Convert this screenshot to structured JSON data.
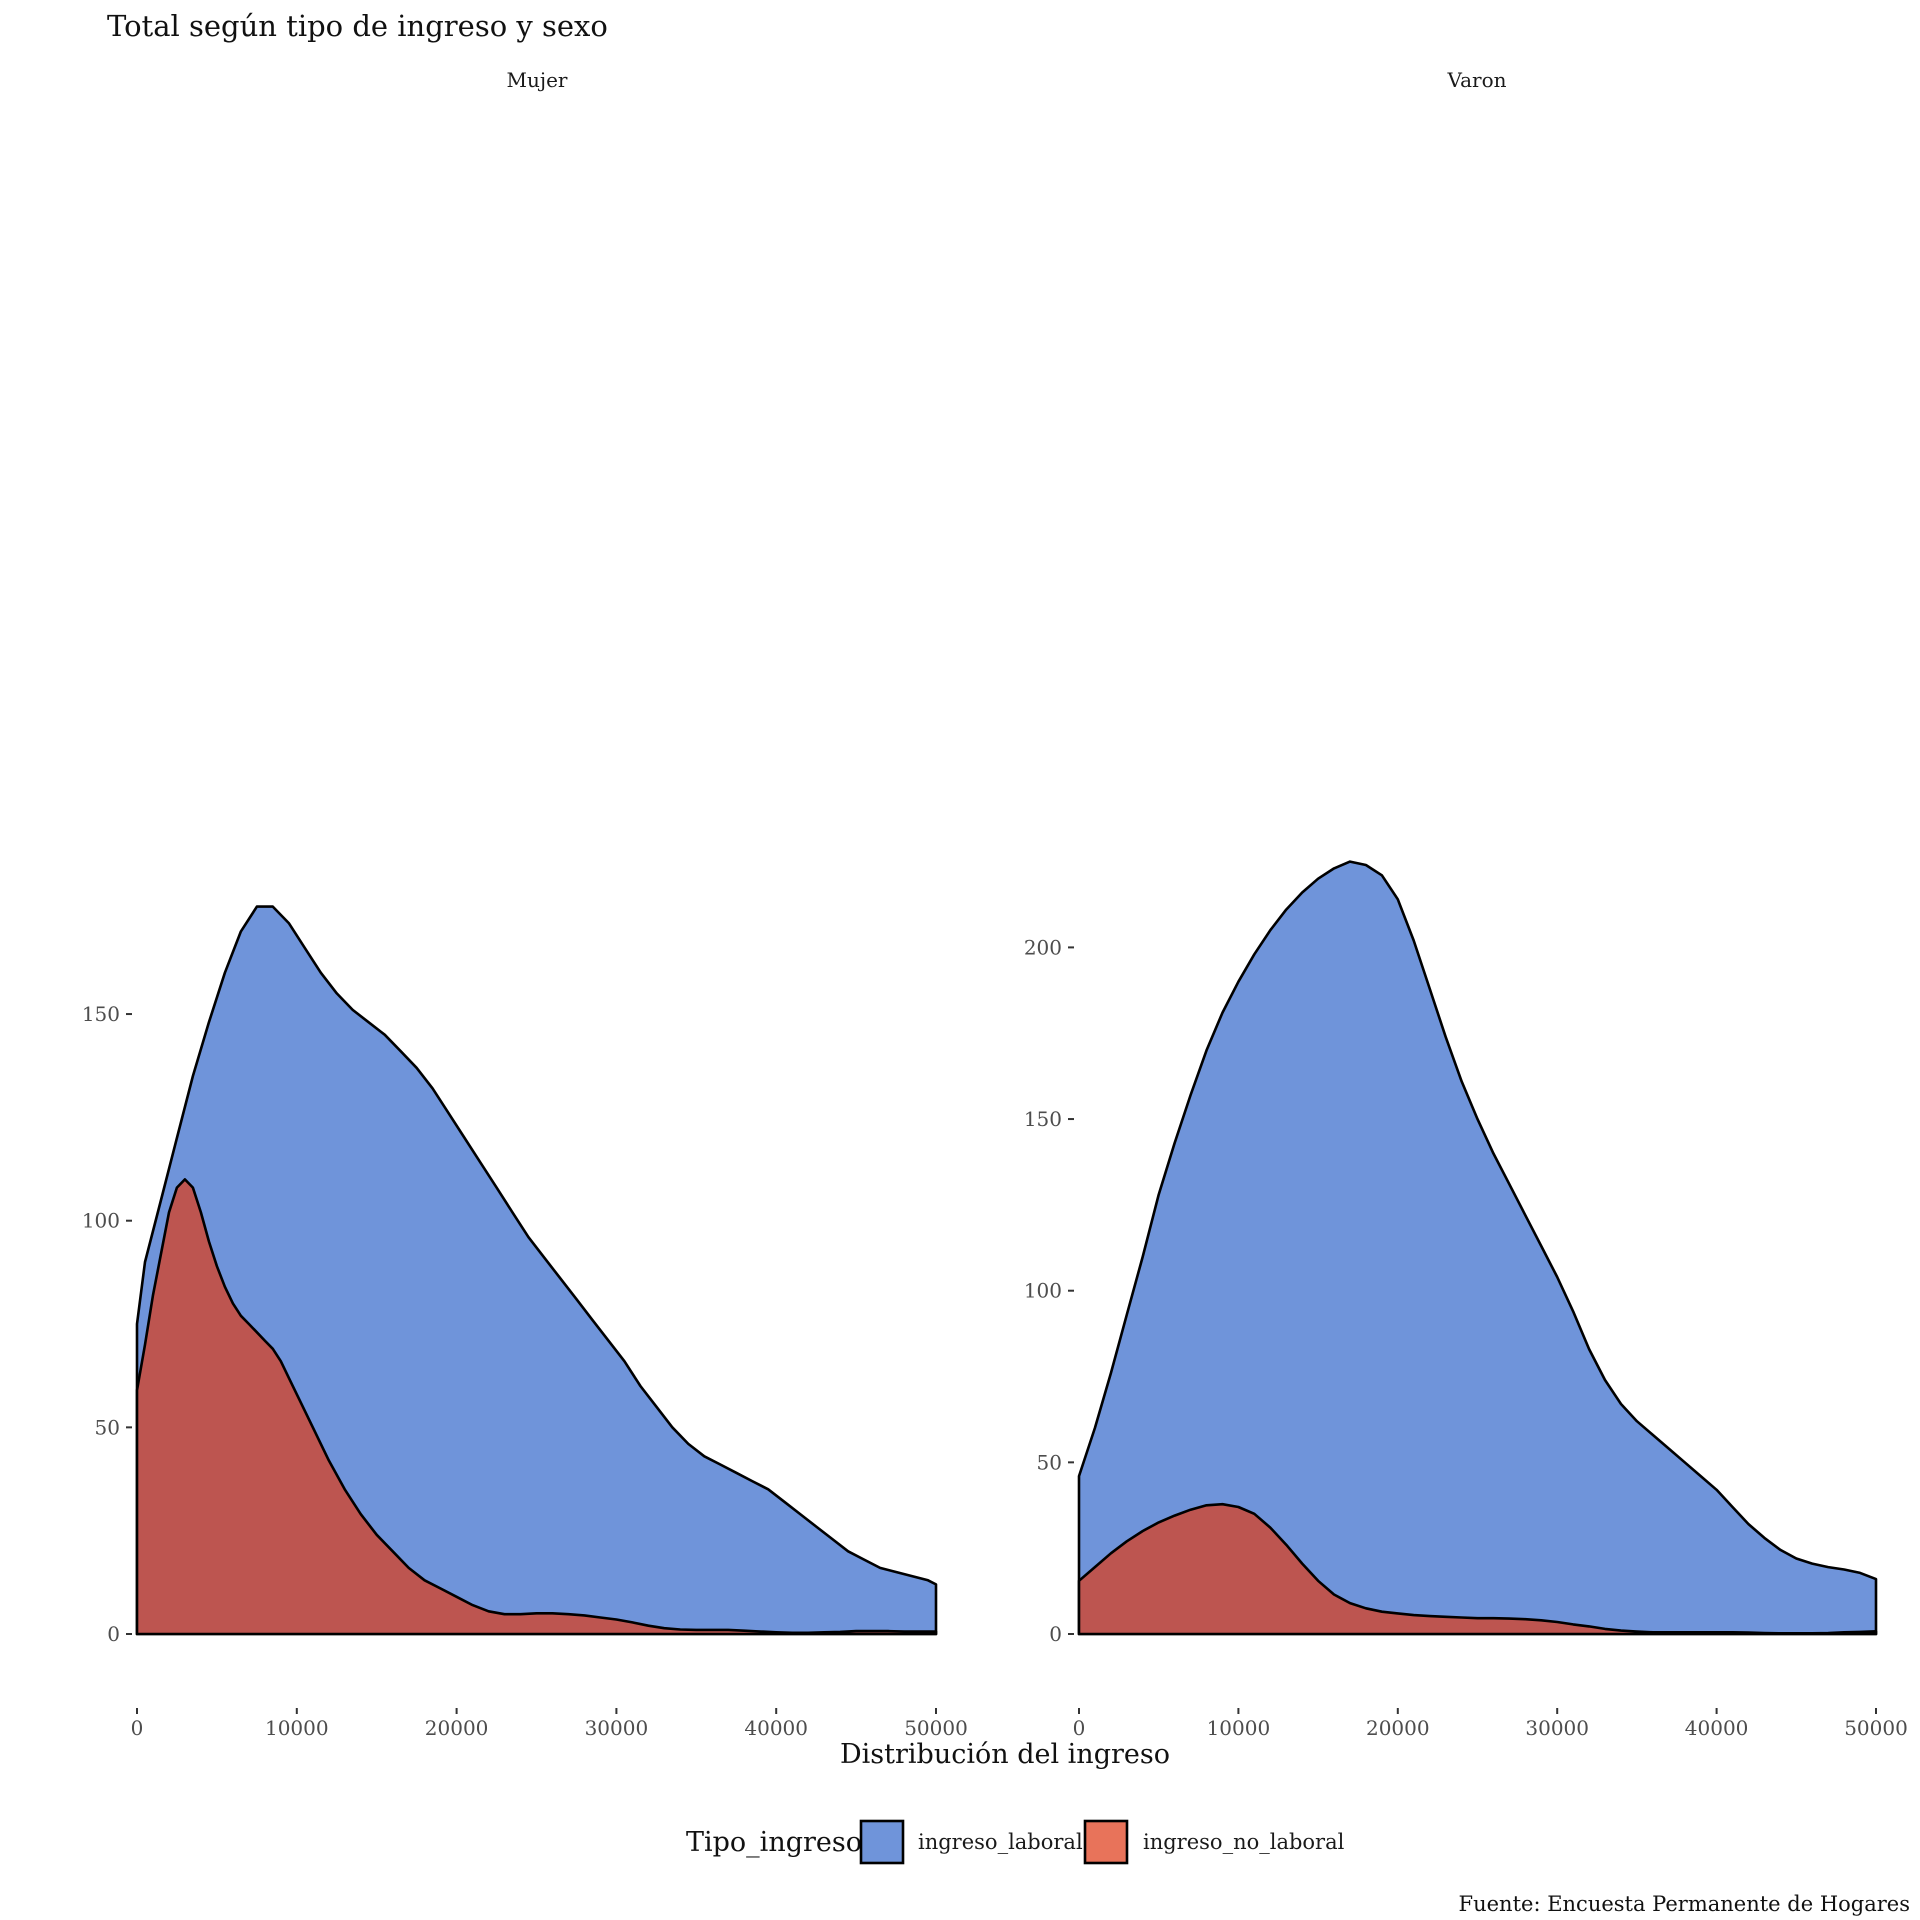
{
  "chart_data": {
    "type": "area",
    "title": "Total según tipo de ingreso y sexo",
    "xlabel": "Distribución del ingreso",
    "caption": "Fuente: Encuesta Permanente de Hogares",
    "legend": {
      "title": "Tipo_ingreso",
      "position": "bottom",
      "entries": [
        {
          "label": "ingreso_laboral",
          "color": "#6F94DA"
        },
        {
          "label": "ingreso_no_laboral",
          "color": "#E8735A"
        }
      ]
    },
    "stacked": true,
    "grid": false,
    "x_ticks": [
      "0",
      "10000",
      "20000",
      "30000",
      "40000",
      "50000"
    ],
    "panels": [
      {
        "strip": "Mujer",
        "xlim": [
          0,
          50000
        ],
        "ylim": [
          0,
          180
        ],
        "y_ticks": [
          0,
          50,
          100,
          150
        ],
        "y_tick_labels": [
          "0",
          "50",
          "100",
          "150"
        ],
        "series": [
          {
            "name": "ingreso_laboral",
            "fill": "#6F94DA",
            "points": [
              [
                0,
                75
              ],
              [
                500,
                90
              ],
              [
                1500,
                105
              ],
              [
                2500,
                120
              ],
              [
                3500,
                135
              ],
              [
                4500,
                148
              ],
              [
                5500,
                160
              ],
              [
                6500,
                170
              ],
              [
                7500,
                176
              ],
              [
                8500,
                176
              ],
              [
                9500,
                172
              ],
              [
                10500,
                166
              ],
              [
                11500,
                160
              ],
              [
                12500,
                155
              ],
              [
                13500,
                151
              ],
              [
                14500,
                148
              ],
              [
                15500,
                145
              ],
              [
                16500,
                141
              ],
              [
                17500,
                137
              ],
              [
                18500,
                132
              ],
              [
                19500,
                126
              ],
              [
                20500,
                120
              ],
              [
                21500,
                114
              ],
              [
                22500,
                108
              ],
              [
                23500,
                102
              ],
              [
                24500,
                96
              ],
              [
                25500,
                91
              ],
              [
                26500,
                86
              ],
              [
                27500,
                81
              ],
              [
                28500,
                76
              ],
              [
                29500,
                71
              ],
              [
                30500,
                66
              ],
              [
                31500,
                60
              ],
              [
                32500,
                55
              ],
              [
                33500,
                50
              ],
              [
                34500,
                46
              ],
              [
                35500,
                43
              ],
              [
                36500,
                41
              ],
              [
                37500,
                39
              ],
              [
                38500,
                37
              ],
              [
                39500,
                35
              ],
              [
                40500,
                32
              ],
              [
                41500,
                29
              ],
              [
                42500,
                26
              ],
              [
                43500,
                23
              ],
              [
                44500,
                20
              ],
              [
                45500,
                18
              ],
              [
                46500,
                16
              ],
              [
                47500,
                15
              ],
              [
                48500,
                14
              ],
              [
                49500,
                13
              ],
              [
                50000,
                12
              ]
            ]
          },
          {
            "name": "ingreso_no_laboral",
            "fill": "#BD5550",
            "points": [
              [
                0,
                59
              ],
              [
                500,
                70
              ],
              [
                1000,
                82
              ],
              [
                1500,
                92
              ],
              [
                2000,
                102
              ],
              [
                2500,
                108
              ],
              [
                3000,
                110
              ],
              [
                3500,
                108
              ],
              [
                4000,
                102
              ],
              [
                4500,
                95
              ],
              [
                5000,
                89
              ],
              [
                5500,
                84
              ],
              [
                6000,
                80
              ],
              [
                6500,
                77
              ],
              [
                7000,
                75
              ],
              [
                7500,
                73
              ],
              [
                8000,
                71
              ],
              [
                8500,
                69
              ],
              [
                9000,
                66
              ],
              [
                9500,
                62
              ],
              [
                10000,
                58
              ],
              [
                11000,
                50
              ],
              [
                12000,
                42
              ],
              [
                13000,
                35
              ],
              [
                14000,
                29
              ],
              [
                15000,
                24
              ],
              [
                16000,
                20
              ],
              [
                17000,
                16
              ],
              [
                18000,
                13
              ],
              [
                19000,
                11
              ],
              [
                20000,
                9
              ],
              [
                21000,
                7
              ],
              [
                22000,
                5.5
              ],
              [
                23000,
                4.8
              ],
              [
                24000,
                4.8
              ],
              [
                25000,
                5
              ],
              [
                26000,
                5
              ],
              [
                27000,
                4.8
              ],
              [
                28000,
                4.5
              ],
              [
                29000,
                4
              ],
              [
                30000,
                3.5
              ],
              [
                31000,
                2.8
              ],
              [
                32000,
                2
              ],
              [
                33000,
                1.4
              ],
              [
                34000,
                1.1
              ],
              [
                35000,
                1
              ],
              [
                36000,
                1
              ],
              [
                37000,
                1
              ],
              [
                38000,
                0.8
              ],
              [
                39000,
                0.6
              ],
              [
                40000,
                0.4
              ],
              [
                41000,
                0.3
              ],
              [
                42000,
                0.3
              ],
              [
                43000,
                0.4
              ],
              [
                44000,
                0.5
              ],
              [
                45000,
                0.7
              ],
              [
                46000,
                0.7
              ],
              [
                47000,
                0.7
              ],
              [
                48000,
                0.6
              ],
              [
                49000,
                0.6
              ],
              [
                50000,
                0.6
              ]
            ]
          }
        ]
      },
      {
        "strip": "Varon",
        "xlim": [
          0,
          50000
        ],
        "ylim": [
          0,
          220
        ],
        "y_ticks": [
          0,
          50,
          100,
          150,
          200
        ],
        "y_tick_labels": [
          "0",
          "50",
          "100",
          "150",
          "200"
        ],
        "series": [
          {
            "name": "ingreso_laboral",
            "fill": "#6F94DA",
            "points": [
              [
                0,
                46
              ],
              [
                1000,
                60
              ],
              [
                2000,
                76
              ],
              [
                3000,
                93
              ],
              [
                4000,
                110
              ],
              [
                5000,
                128
              ],
              [
                6000,
                143
              ],
              [
                7000,
                157
              ],
              [
                8000,
                170
              ],
              [
                9000,
                181
              ],
              [
                10000,
                190
              ],
              [
                11000,
                198
              ],
              [
                12000,
                205
              ],
              [
                13000,
                211
              ],
              [
                14000,
                216
              ],
              [
                15000,
                220
              ],
              [
                16000,
                223
              ],
              [
                17000,
                225
              ],
              [
                18000,
                224
              ],
              [
                19000,
                221
              ],
              [
                20000,
                214
              ],
              [
                21000,
                202
              ],
              [
                22000,
                188
              ],
              [
                23000,
                174
              ],
              [
                24000,
                161
              ],
              [
                25000,
                150
              ],
              [
                26000,
                140
              ],
              [
                27000,
                131
              ],
              [
                28000,
                122
              ],
              [
                29000,
                113
              ],
              [
                30000,
                104
              ],
              [
                31000,
                94
              ],
              [
                32000,
                83
              ],
              [
                33000,
                74
              ],
              [
                34000,
                67
              ],
              [
                35000,
                62
              ],
              [
                36000,
                58
              ],
              [
                37000,
                54
              ],
              [
                38000,
                50
              ],
              [
                39000,
                46
              ],
              [
                40000,
                42
              ],
              [
                41000,
                37
              ],
              [
                42000,
                32
              ],
              [
                43000,
                28
              ],
              [
                44000,
                24.5
              ],
              [
                45000,
                22
              ],
              [
                46000,
                20.5
              ],
              [
                47000,
                19.5
              ],
              [
                48000,
                18.8
              ],
              [
                49000,
                17.8
              ],
              [
                50000,
                16
              ]
            ]
          },
          {
            "name": "ingreso_no_laboral",
            "fill": "#BD5550",
            "points": [
              [
                0,
                15.5
              ],
              [
                1000,
                19.5
              ],
              [
                2000,
                23.5
              ],
              [
                3000,
                27
              ],
              [
                4000,
                30
              ],
              [
                5000,
                32.5
              ],
              [
                6000,
                34.5
              ],
              [
                7000,
                36.2
              ],
              [
                8000,
                37.5
              ],
              [
                9000,
                37.8
              ],
              [
                10000,
                37
              ],
              [
                11000,
                35
              ],
              [
                12000,
                31
              ],
              [
                13000,
                26
              ],
              [
                14000,
                20.5
              ],
              [
                15000,
                15.5
              ],
              [
                16000,
                11.5
              ],
              [
                17000,
                9
              ],
              [
                18000,
                7.5
              ],
              [
                19000,
                6.5
              ],
              [
                20000,
                6
              ],
              [
                21000,
                5.5
              ],
              [
                22000,
                5.2
              ],
              [
                23000,
                5
              ],
              [
                24000,
                4.8
              ],
              [
                25000,
                4.6
              ],
              [
                26000,
                4.6
              ],
              [
                27000,
                4.5
              ],
              [
                28000,
                4.3
              ],
              [
                29000,
                4
              ],
              [
                30000,
                3.5
              ],
              [
                31000,
                2.8
              ],
              [
                32000,
                2.2
              ],
              [
                33000,
                1.5
              ],
              [
                34000,
                1
              ],
              [
                35000,
                0.7
              ],
              [
                36000,
                0.5
              ],
              [
                37000,
                0.5
              ],
              [
                38000,
                0.5
              ],
              [
                39000,
                0.5
              ],
              [
                40000,
                0.5
              ],
              [
                41000,
                0.5
              ],
              [
                42000,
                0.4
              ],
              [
                43000,
                0.3
              ],
              [
                44000,
                0.2
              ],
              [
                45000,
                0.2
              ],
              [
                46000,
                0.2
              ],
              [
                47000,
                0.3
              ],
              [
                48000,
                0.5
              ],
              [
                49000,
                0.6
              ],
              [
                50000,
                0.8
              ]
            ]
          }
        ]
      }
    ]
  }
}
